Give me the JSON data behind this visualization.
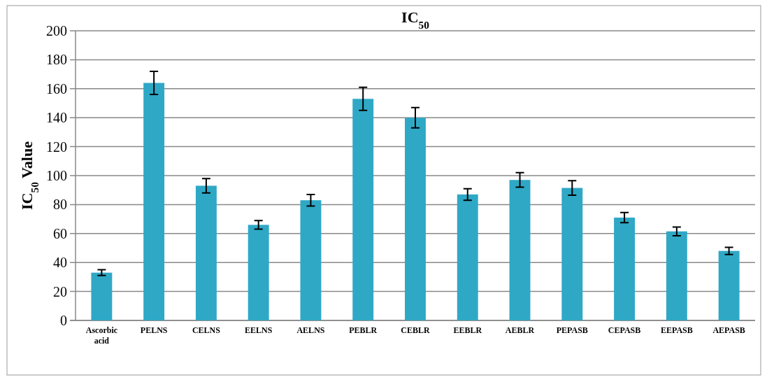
{
  "chart_data": {
    "type": "bar",
    "title": "IC$_{50}$",
    "ylabel": "IC$_{50}$  Value",
    "categories": [
      "Ascorbic acid",
      "PELNS",
      "CELNS",
      "EELNS",
      "AELNS",
      "PEBLR",
      "CEBLR",
      "EEBLR",
      "AEBLR",
      "PEPASB",
      "CEPASB",
      "EEPASB",
      "AEPASB"
    ],
    "values": [
      33,
      164,
      93,
      66,
      83,
      153,
      140,
      87,
      97,
      91.5,
      71,
      61.5,
      48
    ],
    "errors": [
      2,
      8,
      5,
      3,
      4,
      8,
      7,
      4,
      5,
      5,
      3.5,
      3,
      2.5
    ],
    "color": "#2fa8c6",
    "ylim": [
      0,
      200
    ],
    "yticks": [
      0,
      20,
      40,
      60,
      80,
      100,
      120,
      140,
      160,
      180,
      200
    ],
    "grid": "y"
  }
}
